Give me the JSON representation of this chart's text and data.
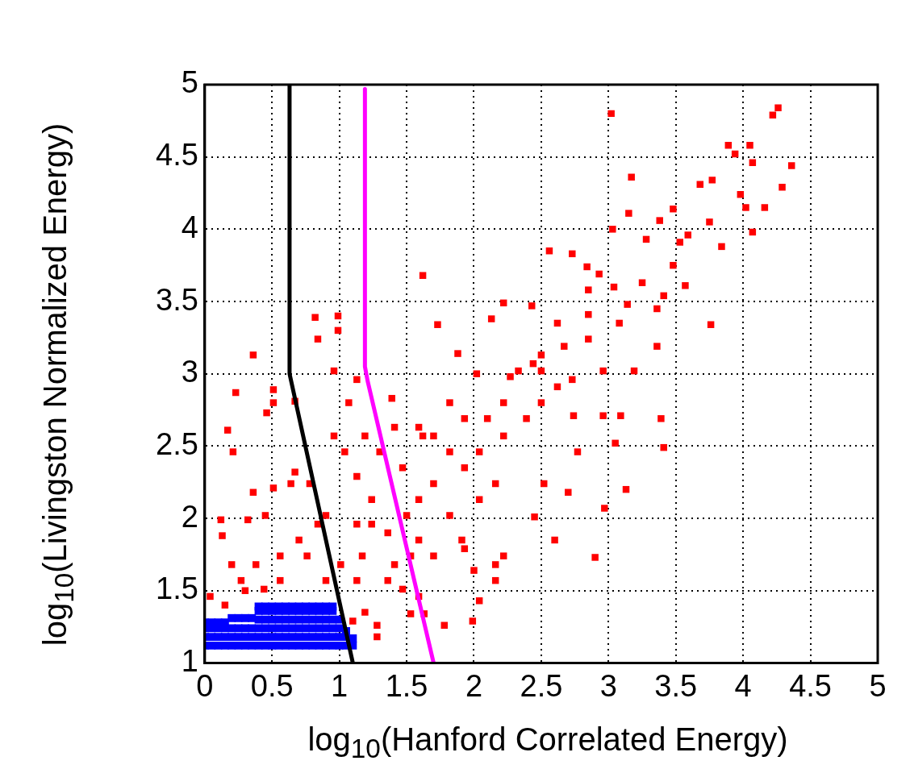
{
  "chart_data": {
    "type": "scatter",
    "xlabel": "log$_{10}$(Hanford Correlated Energy)",
    "ylabel": "log$_{10}$(Livingston Normalized Energy)",
    "xlim": [
      0,
      5
    ],
    "xticks": [
      0,
      0.5,
      1,
      1.5,
      2,
      2.5,
      3,
      3.5,
      4,
      4.5,
      5
    ],
    "ylim": [
      1,
      5
    ],
    "yticks": [
      1,
      1.5,
      2,
      2.5,
      3,
      3.5,
      4,
      4.5,
      5
    ],
    "grid": true,
    "legend": false,
    "marker": "square",
    "series": [
      {
        "type": "scatter",
        "color": "#ff0000",
        "x": [
          3.02,
          4.26,
          4.22,
          4.36,
          3.89,
          4.05,
          3.94,
          4.07,
          4.29,
          4.16,
          4.02,
          4.07,
          3.84,
          3.98,
          3.77,
          3.68,
          3.17,
          3.15,
          3.03,
          3.75,
          3.59,
          3.53,
          3.48,
          3.38,
          3.28,
          3.76,
          3.57,
          3.41,
          3.36,
          3.14,
          3.04,
          2.93,
          2.84,
          2.73,
          2.56,
          2.43,
          2.22,
          2.13,
          1.62,
          1.73,
          1.88,
          2.02,
          2.27,
          2.5,
          2.67,
          2.85,
          2.96,
          3.19,
          3.36,
          3.39,
          3.41,
          3.05,
          2.97,
          3.13,
          2.7,
          2.45,
          2.52,
          2.77,
          2.96,
          3.09,
          2.74,
          2.9,
          2.6,
          2.22,
          2.16,
          2.0,
          2.04,
          1.91,
          1.93,
          1.78,
          1.63,
          1.7,
          1.59,
          1.28,
          1.28,
          1.41,
          1.36,
          1.24,
          1.13,
          1.04,
          0.96,
          1.07,
          1.13,
          0.96,
          0.99,
          0.99,
          0.82,
          0.84,
          0.36,
          0.23,
          0.51,
          0.51,
          0.67,
          0.46,
          0.17,
          0.67,
          0.64,
          0.51,
          0.36,
          0.12,
          0.13,
          0.32,
          0.45,
          0.2,
          0.56,
          0.76,
          0.84,
          0.7,
          0.56,
          0.38,
          0.27,
          0.04,
          0.15,
          0.3,
          0.44,
          0.9,
          1.01,
          1.13,
          1.19,
          1.1,
          1.17,
          1.36,
          1.47,
          1.53,
          1.5,
          1.59,
          1.7,
          1.82,
          2.04,
          2.16,
          1.93,
          1.82,
          1.7,
          1.59,
          1.39,
          1.41,
          1.3,
          1.47,
          2.04,
          1.93,
          2.22,
          2.39,
          2.5,
          2.62,
          2.22,
          2.1,
          2.33,
          2.44,
          2.62,
          2.85,
          3.08,
          3.25,
          3.48,
          2.85,
          2.5,
          2.73,
          1.82,
          1.62,
          1.24,
          0.9,
          0.78,
          0.21,
          1.53,
          1.99,
          2.16,
          1.19,
          1.13,
          1.59
        ],
        "values": [
          4.8,
          4.84,
          4.79,
          4.44,
          4.58,
          4.58,
          4.52,
          4.46,
          4.29,
          4.15,
          4.15,
          3.98,
          3.88,
          4.24,
          4.34,
          4.31,
          4.36,
          4.11,
          4.0,
          4.05,
          3.96,
          3.91,
          4.14,
          4.06,
          3.93,
          3.34,
          3.61,
          3.54,
          3.45,
          3.48,
          3.6,
          3.69,
          3.74,
          3.83,
          3.85,
          3.47,
          3.49,
          3.38,
          3.68,
          3.34,
          3.14,
          3.0,
          2.98,
          3.13,
          3.19,
          3.24,
          3.02,
          3.02,
          3.19,
          2.69,
          2.49,
          2.52,
          2.07,
          2.2,
          2.18,
          2.01,
          2.24,
          2.46,
          2.71,
          2.71,
          2.71,
          1.73,
          1.85,
          1.74,
          1.68,
          1.64,
          1.43,
          1.85,
          1.79,
          1.26,
          1.34,
          1.74,
          1.46,
          1.18,
          1.26,
          1.68,
          1.9,
          2.13,
          2.29,
          2.46,
          2.57,
          2.8,
          2.96,
          3.02,
          3.4,
          3.3,
          3.39,
          3.24,
          3.13,
          2.87,
          2.89,
          2.8,
          2.81,
          2.73,
          2.61,
          2.32,
          2.24,
          2.21,
          2.18,
          1.99,
          1.88,
          1.99,
          2.02,
          1.68,
          1.74,
          1.74,
          1.96,
          1.85,
          1.57,
          1.68,
          1.57,
          1.46,
          1.4,
          1.5,
          1.51,
          1.57,
          1.68,
          1.57,
          1.35,
          1.29,
          1.74,
          1.57,
          1.51,
          1.74,
          2.02,
          2.13,
          2.24,
          2.02,
          2.13,
          2.24,
          2.35,
          2.46,
          2.57,
          2.63,
          2.83,
          2.63,
          2.46,
          2.35,
          2.46,
          2.69,
          2.57,
          2.69,
          2.8,
          2.91,
          2.8,
          2.69,
          3.02,
          3.07,
          3.35,
          3.41,
          3.35,
          3.63,
          3.75,
          3.58,
          3.02,
          2.96,
          2.8,
          2.57,
          1.96,
          2.02,
          2.24,
          2.46,
          1.34,
          1.29,
          1.57,
          2.57,
          1.96,
          1.85
        ]
      },
      {
        "type": "scatter",
        "color": "#0000ff",
        "x": [
          0,
          0,
          0,
          0,
          0.05,
          0.05,
          0.05,
          0.05,
          0.1,
          0.1,
          0.1,
          0.1,
          0.15,
          0.15,
          0.15,
          0.15,
          0.2,
          0.2,
          0.2,
          0.2,
          0.25,
          0.25,
          0.25,
          0.25,
          0.3,
          0.3,
          0.3,
          0.3,
          0.35,
          0.35,
          0.35,
          0.35,
          0.4,
          0.4,
          0.4,
          0.4,
          0.4,
          0.4,
          0.45,
          0.45,
          0.45,
          0.45,
          0.45,
          0.45,
          0.5,
          0.5,
          0.5,
          0.5,
          0.5,
          0.5,
          0.55,
          0.55,
          0.55,
          0.55,
          0.55,
          0.55,
          0.6,
          0.6,
          0.6,
          0.6,
          0.6,
          0.6,
          0.65,
          0.65,
          0.65,
          0.65,
          0.65,
          0.65,
          0.7,
          0.7,
          0.7,
          0.7,
          0.7,
          0.7,
          0.75,
          0.75,
          0.75,
          0.75,
          0.75,
          0.75,
          0.8,
          0.8,
          0.8,
          0.8,
          0.8,
          0.8,
          0.85,
          0.85,
          0.85,
          0.85,
          0.85,
          0.85,
          0.9,
          0.9,
          0.9,
          0.9,
          0.9,
          0.9,
          0.95,
          0.95,
          0.95,
          0.95,
          0.95,
          0.95,
          1.0,
          1.0,
          1.0,
          1.0,
          1.05,
          1.05,
          1.05,
          1.1,
          1.1
        ],
        "values": [
          1.12,
          1.18,
          1.24,
          1.28,
          1.12,
          1.18,
          1.24,
          1.28,
          1.12,
          1.18,
          1.24,
          1.28,
          1.12,
          1.18,
          1.24,
          1.28,
          1.12,
          1.18,
          1.24,
          1.31,
          1.12,
          1.18,
          1.24,
          1.31,
          1.12,
          1.18,
          1.24,
          1.31,
          1.12,
          1.18,
          1.24,
          1.31,
          1.12,
          1.18,
          1.24,
          1.3,
          1.36,
          1.39,
          1.12,
          1.18,
          1.24,
          1.3,
          1.36,
          1.39,
          1.12,
          1.18,
          1.24,
          1.3,
          1.36,
          1.39,
          1.12,
          1.18,
          1.24,
          1.3,
          1.36,
          1.39,
          1.12,
          1.18,
          1.24,
          1.3,
          1.36,
          1.39,
          1.12,
          1.18,
          1.24,
          1.3,
          1.36,
          1.39,
          1.12,
          1.18,
          1.24,
          1.3,
          1.36,
          1.39,
          1.12,
          1.18,
          1.24,
          1.3,
          1.36,
          1.39,
          1.12,
          1.18,
          1.24,
          1.3,
          1.36,
          1.39,
          1.12,
          1.18,
          1.24,
          1.3,
          1.36,
          1.39,
          1.12,
          1.18,
          1.24,
          1.3,
          1.36,
          1.39,
          1.12,
          1.18,
          1.24,
          1.3,
          1.36,
          1.39,
          1.12,
          1.18,
          1.24,
          1.3,
          1.12,
          1.18,
          1.22,
          1.12,
          1.17
        ]
      },
      {
        "type": "line",
        "marker": "none",
        "color": "#000000",
        "x": [
          0.63,
          0.63,
          1.1
        ],
        "values": [
          5,
          3,
          1
        ]
      },
      {
        "type": "line",
        "marker": "none",
        "color": "#ff00ff",
        "x": [
          1.19,
          1.19,
          1.21,
          1.7
        ],
        "values": [
          4.97,
          3.05,
          2.95,
          1.0
        ]
      }
    ]
  }
}
